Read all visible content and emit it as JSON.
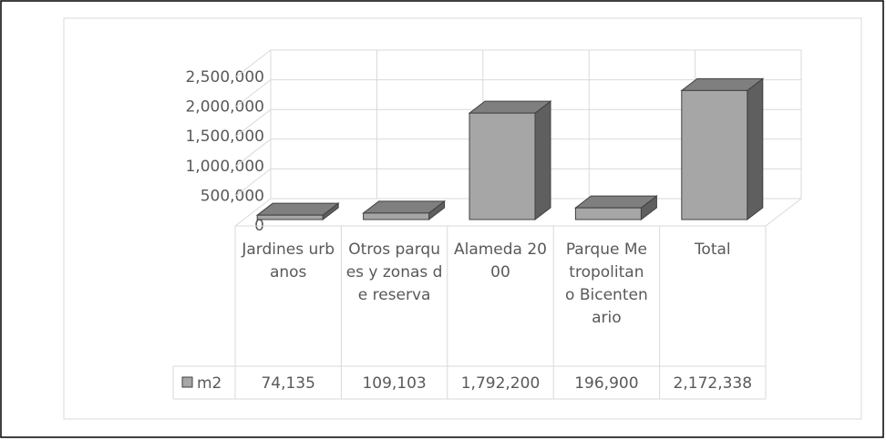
{
  "chart_data": {
    "type": "bar3d",
    "categories": [
      "Jardines urbanos",
      "Otros parques y zonas de reserva",
      "Alameda 2000",
      "Parque Metropolitano Bicentenario",
      "Total"
    ],
    "series": [
      {
        "name": "m2",
        "color": "#a6a6a6",
        "values": [
          74135,
          109103,
          1792200,
          196900,
          2172338
        ],
        "value_labels": [
          "74,135",
          "109,103",
          "1,792,200",
          "196,900",
          "2,172,338"
        ]
      }
    ],
    "ylim": [
      0,
      2500000
    ],
    "yticks": [
      0,
      {
        "value": 500000,
        "label": "500,000"
      },
      {
        "value": 1000000,
        "label": "1,000,000"
      },
      {
        "value": 1500000,
        "label": "1,500,000"
      },
      {
        "value": 2000000,
        "label": "2,000,000"
      },
      {
        "value": 2500000,
        "label": "2,500,000"
      }
    ],
    "grid": true,
    "data_table": true
  }
}
